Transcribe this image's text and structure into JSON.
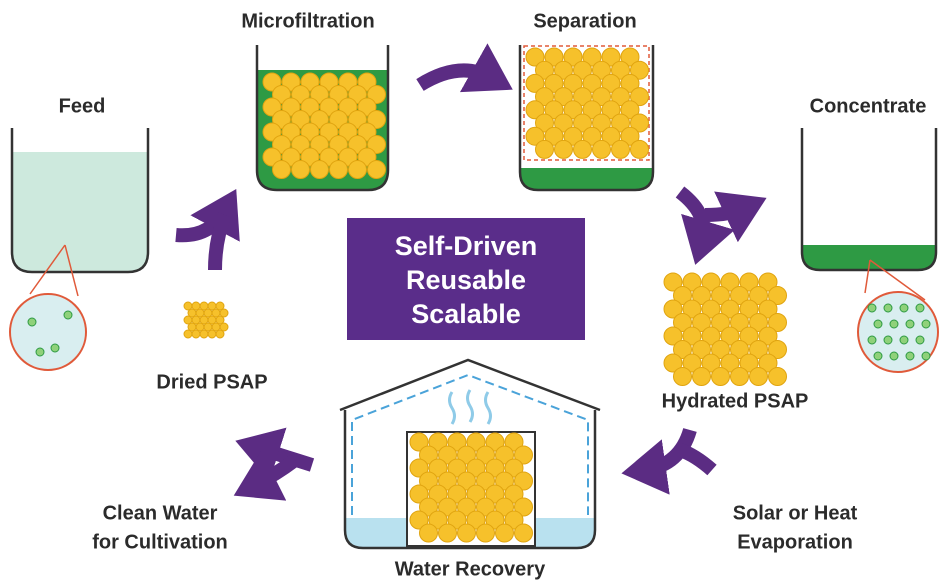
{
  "labels": {
    "feed": "Feed",
    "microfiltration": "Microfiltration",
    "separation": "Separation",
    "concentrate": "Concentrate",
    "dried": "Dried PSAP",
    "hydrated": "Hydrated PSAP",
    "recovery": "Water Recovery",
    "clean": [
      "Clean Water",
      "for Cultivation"
    ],
    "evaporation": [
      "Solar or Heat",
      "Evaporation"
    ]
  },
  "center": [
    "Self-Driven",
    "Reusable",
    "Scalable"
  ]
}
